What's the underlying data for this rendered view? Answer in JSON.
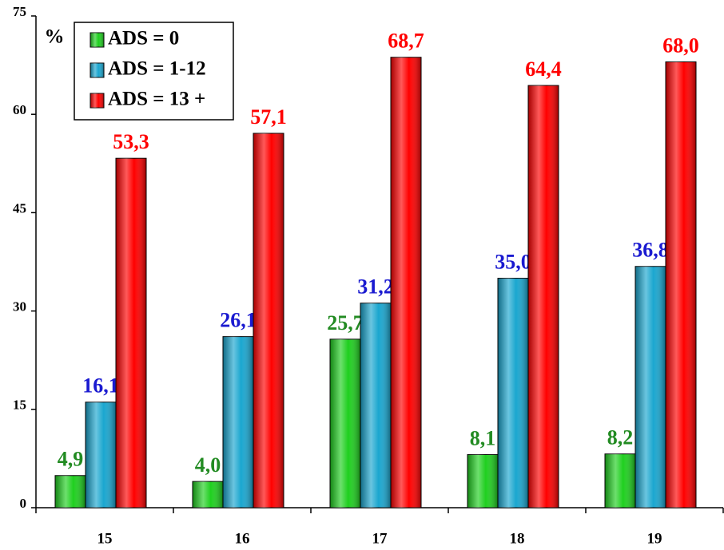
{
  "chart_data": {
    "type": "bar",
    "y_label": "%",
    "categories": [
      "15",
      "16",
      "17",
      "18",
      "19"
    ],
    "series": [
      {
        "name": "ADS = 0",
        "color": "#1fcf1f",
        "label_color": "#228b22",
        "values": [
          4.9,
          4.0,
          25.7,
          8.1,
          8.2
        ],
        "value_labels": [
          "4,9",
          "4,0",
          "25,7",
          "8,1",
          "8,2"
        ]
      },
      {
        "name": "ADS = 1-12",
        "color": "#1aa6cf",
        "label_color": "#1a1ad0",
        "values": [
          16.1,
          26.1,
          31.2,
          35.0,
          36.8
        ],
        "value_labels": [
          "16,1",
          "26,1",
          "31,2",
          "35,0",
          "36,8"
        ]
      },
      {
        "name": "ADS = 13 +",
        "color": "#ff0000",
        "label_color": "#ff0000",
        "values": [
          53.3,
          57.1,
          68.7,
          64.4,
          68.0
        ],
        "value_labels": [
          "53,3",
          "57,1",
          "68,7",
          "64,4",
          "68,0"
        ]
      }
    ],
    "ylim": [
      0,
      75
    ],
    "yticks": [
      0,
      15,
      30,
      45,
      60,
      75
    ],
    "legend": "upper left"
  }
}
